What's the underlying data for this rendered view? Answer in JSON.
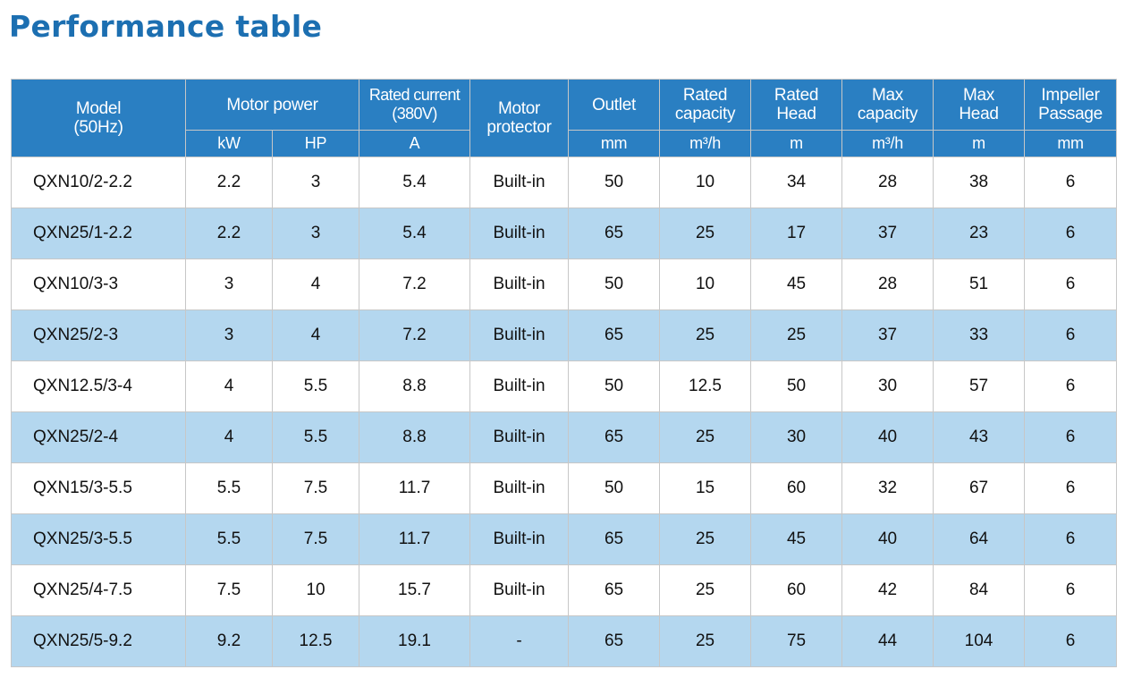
{
  "title": "Performance table",
  "header": {
    "model": [
      "Model",
      "(50Hz)"
    ],
    "motor_power": "Motor power",
    "rated_current": [
      "Rated current",
      "(380V)"
    ],
    "motor_protector": [
      "Motor",
      "protector"
    ],
    "outlet": "Outlet",
    "rated_capacity": [
      "Rated",
      "capacity"
    ],
    "rated_head": [
      "Rated",
      "Head"
    ],
    "max_capacity": [
      "Max",
      "capacity"
    ],
    "max_head": [
      "Max",
      "Head"
    ],
    "impeller_passage": [
      "Impeller",
      "Passage"
    ],
    "units": {
      "kw": "kW",
      "hp": "HP",
      "current": "A",
      "outlet": "mm",
      "rated_capacity": "m³/h",
      "rated_head": "m",
      "max_capacity": "m³/h",
      "max_head": "m",
      "impeller_passage": "mm"
    }
  },
  "rows": [
    [
      "QXN10/2-2.2",
      "2.2",
      "3",
      "5.4",
      "Built-in",
      "50",
      "10",
      "34",
      "28",
      "38",
      "6"
    ],
    [
      "QXN25/1-2.2",
      "2.2",
      "3",
      "5.4",
      "Built-in",
      "65",
      "25",
      "17",
      "37",
      "23",
      "6"
    ],
    [
      "QXN10/3-3",
      "3",
      "4",
      "7.2",
      "Built-in",
      "50",
      "10",
      "45",
      "28",
      "51",
      "6"
    ],
    [
      "QXN25/2-3",
      "3",
      "4",
      "7.2",
      "Built-in",
      "65",
      "25",
      "25",
      "37",
      "33",
      "6"
    ],
    [
      "QXN12.5/3-4",
      "4",
      "5.5",
      "8.8",
      "Built-in",
      "50",
      "12.5",
      "50",
      "30",
      "57",
      "6"
    ],
    [
      "QXN25/2-4",
      "4",
      "5.5",
      "8.8",
      "Built-in",
      "65",
      "25",
      "30",
      "40",
      "43",
      "6"
    ],
    [
      "QXN15/3-5.5",
      "5.5",
      "7.5",
      "11.7",
      "Built-in",
      "50",
      "15",
      "60",
      "32",
      "67",
      "6"
    ],
    [
      "QXN25/3-5.5",
      "5.5",
      "7.5",
      "11.7",
      "Built-in",
      "65",
      "25",
      "45",
      "40",
      "64",
      "6"
    ],
    [
      "QXN25/4-7.5",
      "7.5",
      "10",
      "15.7",
      "Built-in",
      "65",
      "25",
      "60",
      "42",
      "84",
      "6"
    ],
    [
      "QXN25/5-9.2",
      "9.2",
      "12.5",
      "19.1",
      "-",
      "65",
      "25",
      "75",
      "44",
      "104",
      "6"
    ]
  ],
  "colors": {
    "title": "#1c6fb1",
    "header_bg": "#2a7fc2",
    "row_alt_bg": "#b4d7ef",
    "border": "#c7c7c7"
  }
}
